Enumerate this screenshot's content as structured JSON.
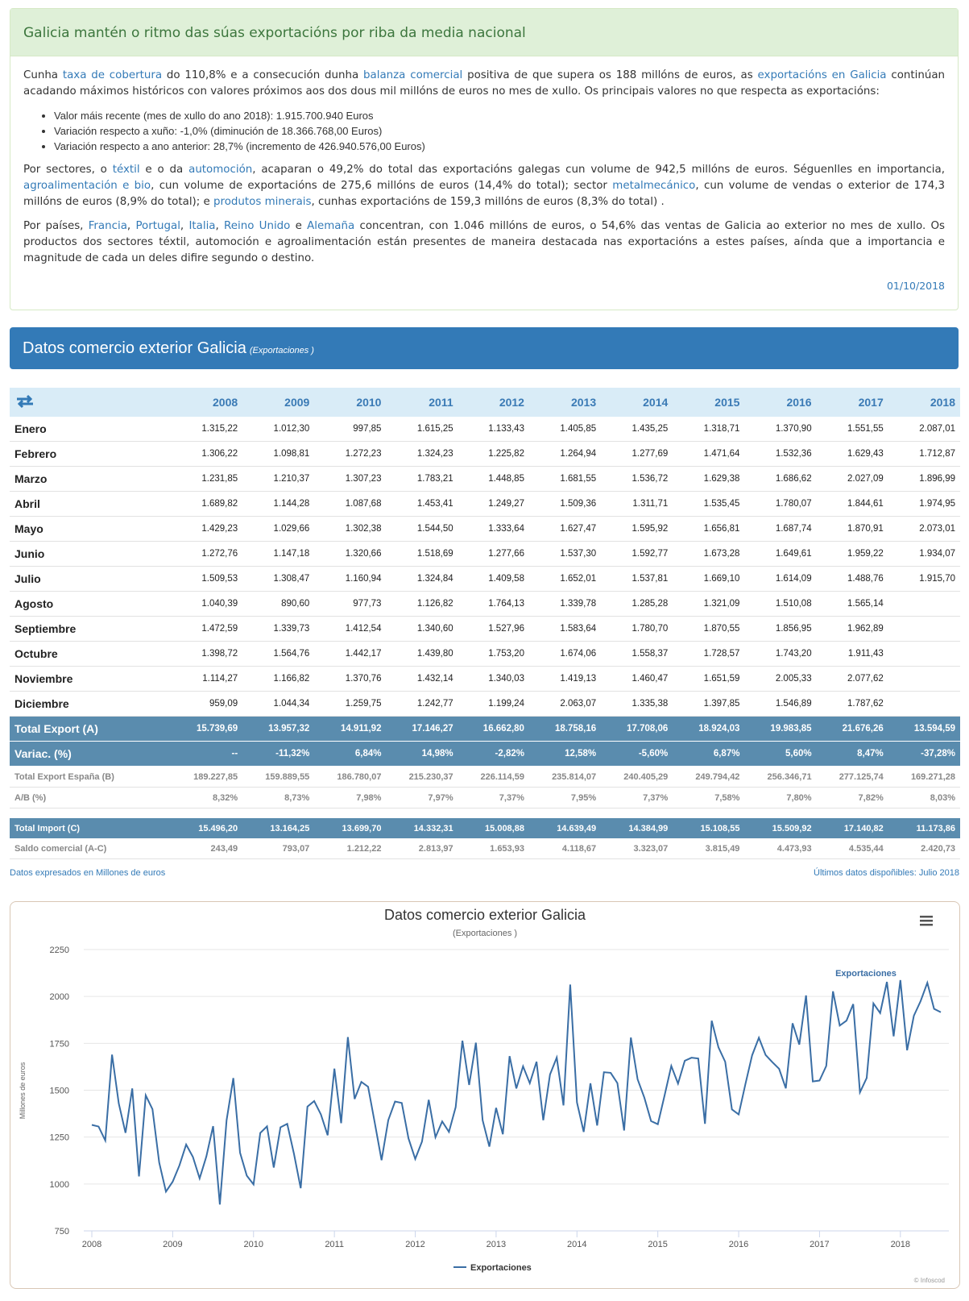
{
  "header": {
    "title": "Galicia mantén o ritmo das súas exportacións por riba da media nacional"
  },
  "article": {
    "paragraphs": [
      {
        "segments": [
          {
            "text": "Cunha "
          },
          {
            "link": "taxa de cobertura"
          },
          {
            "text": " do 110,8% e a consecución dunha "
          },
          {
            "link": "balanza comercial"
          },
          {
            "text": " positiva de que supera os 188 millóns de euros, as "
          },
          {
            "link": "exportacións en Galicia"
          },
          {
            "text": " continúan acadando máximos históricos con valores próximos aos dos dous mil millóns de euros no mes de xullo. Os principais valores no que respecta as exportacións:"
          }
        ]
      },
      {
        "segments": [
          {
            "text": "Por sectores, o "
          },
          {
            "link": "téxtil"
          },
          {
            "text": " e o da "
          },
          {
            "link": "automoción"
          },
          {
            "text": ", acaparan o 49,2% do total das exportacións galegas cun volume de 942,5 millóns de euros. Séguenlles en importancia, "
          },
          {
            "link": "agroalimentación e bio"
          },
          {
            "text": ", cun volume de exportacións de 275,6 millóns de euros (14,4% do total); sector "
          },
          {
            "link": "metalmecánico"
          },
          {
            "text": ", cun volume de vendas o exterior de 174,3 millóns de euros (8,9% do total); e "
          },
          {
            "link": "produtos minerais"
          },
          {
            "text": ", cunhas exportacións de 159,3 millóns de euros (8,3% do total) ."
          }
        ]
      },
      {
        "segments": [
          {
            "text": "Por países, "
          },
          {
            "link": "Francia"
          },
          {
            "text": ", "
          },
          {
            "link": "Portugal"
          },
          {
            "text": ", "
          },
          {
            "link": "Italia"
          },
          {
            "text": ", "
          },
          {
            "link": "Reino Unido"
          },
          {
            "text": " e "
          },
          {
            "link": "Alemaña"
          },
          {
            "text": " concentran, con 1.046 millóns de euros, o 54,6% das ventas de Galicia ao exterior no mes de xullo. Os productos dos sectores téxtil, automoción e agroalimentación están presentes de maneira destacada nas exportacións a estes países, aínda que a importancia e magnitude de cada un deles difire segundo o destino."
          }
        ]
      }
    ],
    "bullets": [
      "Valor máis recente (mes de xullo do ano 2018): 1.915.700.940 Euros",
      "Variación respecto a xuño: -1,0% (diminución de 18.366.768,00 Euros)",
      "Variación respecto a ano anterior: 28,7% (incremento de 426.940.576,00 Euros)"
    ],
    "date": "01/10/2018"
  },
  "section": {
    "title": "Datos comercio exterior Galicia",
    "subtitle": "(Exportaciones )"
  },
  "table": {
    "years": [
      "2008",
      "2009",
      "2010",
      "2011",
      "2012",
      "2013",
      "2014",
      "2015",
      "2016",
      "2017",
      "2018"
    ],
    "rows": [
      [
        "Enero",
        "1.315,22",
        "1.012,30",
        "997,85",
        "1.615,25",
        "1.133,43",
        "1.405,85",
        "1.435,25",
        "1.318,71",
        "1.370,90",
        "1.551,55",
        "2.087,01"
      ],
      [
        "Febrero",
        "1.306,22",
        "1.098,81",
        "1.272,23",
        "1.324,23",
        "1.225,82",
        "1.264,94",
        "1.277,69",
        "1.471,64",
        "1.532,36",
        "1.629,43",
        "1.712,87"
      ],
      [
        "Marzo",
        "1.231,85",
        "1.210,37",
        "1.307,23",
        "1.783,21",
        "1.448,85",
        "1.681,55",
        "1.536,72",
        "1.629,38",
        "1.686,62",
        "2.027,09",
        "1.896,99"
      ],
      [
        "Abril",
        "1.689,82",
        "1.144,28",
        "1.087,68",
        "1.453,41",
        "1.249,27",
        "1.509,36",
        "1.311,71",
        "1.535,45",
        "1.780,07",
        "1.844,61",
        "1.974,95"
      ],
      [
        "Mayo",
        "1.429,23",
        "1.029,66",
        "1.302,38",
        "1.544,50",
        "1.333,64",
        "1.627,47",
        "1.595,92",
        "1.656,81",
        "1.687,74",
        "1.870,91",
        "2.073,01"
      ],
      [
        "Junio",
        "1.272,76",
        "1.147,18",
        "1.320,66",
        "1.518,69",
        "1.277,66",
        "1.537,30",
        "1.592,77",
        "1.673,28",
        "1.649,61",
        "1.959,22",
        "1.934,07"
      ],
      [
        "Julio",
        "1.509,53",
        "1.308,47",
        "1.160,94",
        "1.324,84",
        "1.409,58",
        "1.652,01",
        "1.537,81",
        "1.669,10",
        "1.614,09",
        "1.488,76",
        "1.915,70"
      ],
      [
        "Agosto",
        "1.040,39",
        "890,60",
        "977,73",
        "1.126,82",
        "1.764,13",
        "1.339,78",
        "1.285,28",
        "1.321,09",
        "1.510,08",
        "1.565,14"
      ],
      [
        "Septiembre",
        "1.472,59",
        "1.339,73",
        "1.412,54",
        "1.340,60",
        "1.527,96",
        "1.583,64",
        "1.780,70",
        "1.870,55",
        "1.856,95",
        "1.962,89"
      ],
      [
        "Octubre",
        "1.398,72",
        "1.564,76",
        "1.442,17",
        "1.439,80",
        "1.753,20",
        "1.674,06",
        "1.558,37",
        "1.728,57",
        "1.743,20",
        "1.911,43"
      ],
      [
        "Noviembre",
        "1.114,27",
        "1.166,82",
        "1.370,76",
        "1.432,14",
        "1.340,03",
        "1.419,13",
        "1.460,47",
        "1.651,59",
        "2.005,33",
        "2.077,62"
      ],
      [
        "Diciembre",
        "959,09",
        "1.044,34",
        "1.259,75",
        "1.242,77",
        "1.199,24",
        "2.063,07",
        "1.335,38",
        "1.397,85",
        "1.546,89",
        "1.787,62"
      ]
    ],
    "total_rows": [
      [
        "Total Export (A)",
        "15.739,69",
        "13.957,32",
        "14.911,92",
        "17.146,27",
        "16.662,80",
        "18.758,16",
        "17.708,06",
        "18.924,03",
        "19.983,85",
        "21.676,26",
        "13.594,59"
      ],
      [
        "Variac. (%)",
        "--",
        "-11,32%",
        "6,84%",
        "14,98%",
        "-2,82%",
        "12,58%",
        "-5,60%",
        "6,87%",
        "5,60%",
        "8,47%",
        "-37,28%"
      ]
    ],
    "info_rows": [
      [
        "Total Export España (B)",
        "189.227,85",
        "159.889,55",
        "186.780,07",
        "215.230,37",
        "226.114,59",
        "235.814,07",
        "240.405,29",
        "249.794,42",
        "256.346,71",
        "277.125,74",
        "169.271,28"
      ],
      [
        "A/B (%)",
        "8,32%",
        "8,73%",
        "7,98%",
        "7,97%",
        "7,37%",
        "7,95%",
        "7,37%",
        "7,58%",
        "7,80%",
        "7,82%",
        "8,03%"
      ]
    ],
    "import_rows": [
      [
        "Total Import (C)",
        "15.496,20",
        "13.164,25",
        "13.699,70",
        "14.332,31",
        "15.008,88",
        "14.639,49",
        "14.384,99",
        "15.108,55",
        "15.509,92",
        "17.140,82",
        "11.173,86"
      ]
    ],
    "balance_rows": [
      [
        "Saldo comercial (A-C)",
        "243,49",
        "793,07",
        "1.212,22",
        "2.813,97",
        "1.653,93",
        "4.118,67",
        "3.323,07",
        "3.815,49",
        "4.473,93",
        "4.535,44",
        "2.420,73"
      ]
    ]
  },
  "notes": {
    "left": "Datos expresados en Millones de euros",
    "right": "Últimos datos dispoñibles: Julio 2018"
  },
  "chart_data": {
    "type": "line",
    "title": "Datos comercio exterior Galicia",
    "subtitle": "(Exportaciones )",
    "ylabel": "Millones de euros",
    "credit": "© Infoscod",
    "x": [
      "2008-01",
      "2008-02",
      "2008-03",
      "2008-04",
      "2008-05",
      "2008-06",
      "2008-07",
      "2008-08",
      "2008-09",
      "2008-10",
      "2008-11",
      "2008-12",
      "2009-01",
      "2009-02",
      "2009-03",
      "2009-04",
      "2009-05",
      "2009-06",
      "2009-07",
      "2009-08",
      "2009-09",
      "2009-10",
      "2009-11",
      "2009-12",
      "2010-01",
      "2010-02",
      "2010-03",
      "2010-04",
      "2010-05",
      "2010-06",
      "2010-07",
      "2010-08",
      "2010-09",
      "2010-10",
      "2010-11",
      "2010-12",
      "2011-01",
      "2011-02",
      "2011-03",
      "2011-04",
      "2011-05",
      "2011-06",
      "2011-07",
      "2011-08",
      "2011-09",
      "2011-10",
      "2011-11",
      "2011-12",
      "2012-01",
      "2012-02",
      "2012-03",
      "2012-04",
      "2012-05",
      "2012-06",
      "2012-07",
      "2012-08",
      "2012-09",
      "2012-10",
      "2012-11",
      "2012-12",
      "2013-01",
      "2013-02",
      "2013-03",
      "2013-04",
      "2013-05",
      "2013-06",
      "2013-07",
      "2013-08",
      "2013-09",
      "2013-10",
      "2013-11",
      "2013-12",
      "2014-01",
      "2014-02",
      "2014-03",
      "2014-04",
      "2014-05",
      "2014-06",
      "2014-07",
      "2014-08",
      "2014-09",
      "2014-10",
      "2014-11",
      "2014-12",
      "2015-01",
      "2015-02",
      "2015-03",
      "2015-04",
      "2015-05",
      "2015-06",
      "2015-07",
      "2015-08",
      "2015-09",
      "2015-10",
      "2015-11",
      "2015-12",
      "2016-01",
      "2016-02",
      "2016-03",
      "2016-04",
      "2016-05",
      "2016-06",
      "2016-07",
      "2016-08",
      "2016-09",
      "2016-10",
      "2016-11",
      "2016-12",
      "2017-01",
      "2017-02",
      "2017-03",
      "2017-04",
      "2017-05",
      "2017-06",
      "2017-07",
      "2017-08",
      "2017-09",
      "2017-10",
      "2017-11",
      "2017-12",
      "2018-01",
      "2018-02",
      "2018-03",
      "2018-04",
      "2018-05",
      "2018-06",
      "2018-07"
    ],
    "series": [
      {
        "name": "Exportaciones",
        "color": "#3a6ea5",
        "values": [
          1315.22,
          1306.22,
          1231.85,
          1689.82,
          1429.23,
          1272.76,
          1509.53,
          1040.39,
          1472.59,
          1398.72,
          1114.27,
          959.09,
          1012.3,
          1098.81,
          1210.37,
          1144.28,
          1029.66,
          1147.18,
          1308.47,
          890.6,
          1339.73,
          1564.76,
          1166.82,
          1044.34,
          997.85,
          1272.23,
          1307.23,
          1087.68,
          1302.38,
          1320.66,
          1160.94,
          977.73,
          1412.54,
          1442.17,
          1370.76,
          1259.75,
          1615.25,
          1324.23,
          1783.21,
          1453.41,
          1544.5,
          1518.69,
          1324.84,
          1126.82,
          1340.6,
          1439.8,
          1432.14,
          1242.77,
          1133.43,
          1225.82,
          1448.85,
          1249.27,
          1333.64,
          1277.66,
          1409.58,
          1764.13,
          1527.96,
          1753.2,
          1340.03,
          1199.24,
          1405.85,
          1264.94,
          1681.55,
          1509.36,
          1627.47,
          1537.3,
          1652.01,
          1339.78,
          1583.64,
          1674.06,
          1419.13,
          2063.07,
          1435.25,
          1277.69,
          1536.72,
          1311.71,
          1595.92,
          1592.77,
          1537.81,
          1285.28,
          1780.7,
          1558.37,
          1460.47,
          1335.38,
          1318.71,
          1471.64,
          1629.38,
          1535.45,
          1656.81,
          1673.28,
          1669.1,
          1321.09,
          1870.55,
          1728.57,
          1651.59,
          1397.85,
          1370.9,
          1532.36,
          1686.62,
          1780.07,
          1687.74,
          1649.61,
          1614.09,
          1510.08,
          1856.95,
          1743.2,
          2005.33,
          1546.89,
          1551.55,
          1629.43,
          2027.09,
          1844.61,
          1870.91,
          1959.22,
          1488.76,
          1565.14,
          1962.89,
          1911.43,
          2077.62,
          1787.62,
          2087.01,
          1712.87,
          1896.99,
          1974.95,
          2073.01,
          1934.07,
          1915.7
        ]
      }
    ],
    "xlim": [
      "2008-01",
      "2018-07"
    ],
    "xticks": [
      2008,
      2009,
      2010,
      2011,
      2012,
      2013,
      2014,
      2015,
      2016,
      2017,
      2018
    ],
    "ylim": [
      750,
      2250
    ],
    "yticks": [
      750,
      1000,
      1250,
      1500,
      1750,
      2000,
      2250
    ],
    "grid": true,
    "legend": "bottom"
  }
}
